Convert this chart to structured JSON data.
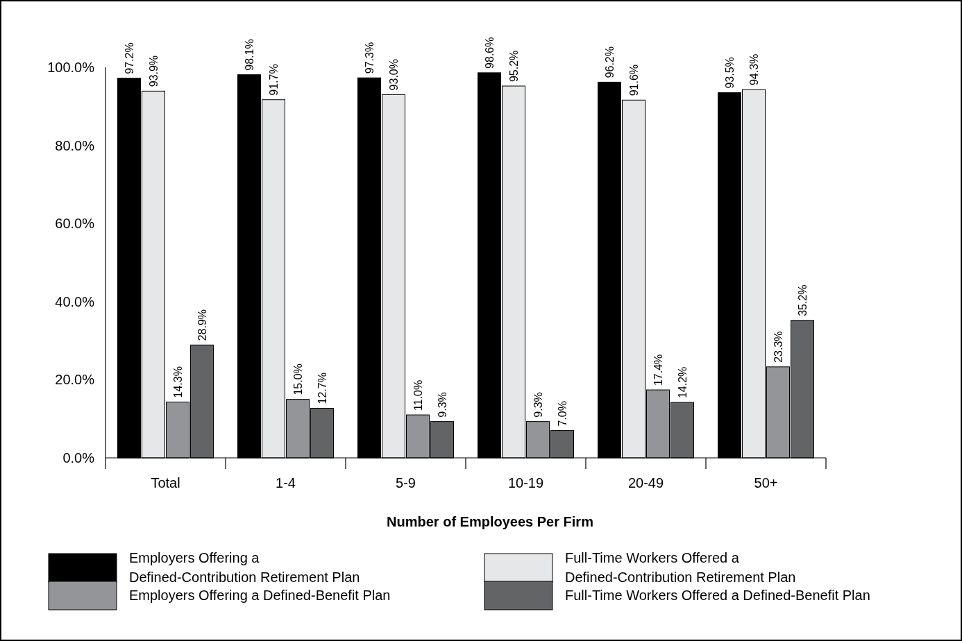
{
  "chart_data": {
    "type": "bar",
    "xlabel": "Number of Employees Per Firm",
    "categories": [
      "Total",
      "1-4",
      "5-9",
      "10-19",
      "20-49",
      "50+"
    ],
    "series": [
      {
        "name": "Employers Offering a\nDefined-Contribution Retirement Plan",
        "color": "#000000",
        "values": [
          97.2,
          98.1,
          97.3,
          98.6,
          96.2,
          93.5
        ],
        "value_labels": [
          "97.2%",
          "98.1%",
          "97.3%",
          "98.6%",
          "96.2%",
          "93.5%"
        ]
      },
      {
        "name": "Full-Time Workers Offered a\nDefined-Contribution Retirement Plan",
        "color": "#e6e7e8",
        "values": [
          93.9,
          91.7,
          93.0,
          95.2,
          91.6,
          94.3
        ],
        "value_labels": [
          "93.9%",
          "91.7%",
          "93.0%",
          "95.2%",
          "91.6%",
          "94.3%"
        ]
      },
      {
        "name": "Employers Offering a Defined-Benefit Plan",
        "color": "#939598",
        "values": [
          14.3,
          15.0,
          11.0,
          9.3,
          17.4,
          23.3
        ],
        "value_labels": [
          "14.3%",
          "15.0%",
          "11.0%",
          "9.3%",
          "17.4%",
          "23.3%"
        ]
      },
      {
        "name": "Full-Time Workers Offered a Defined-Benefit Plan",
        "color": "#636466",
        "values": [
          28.9,
          12.7,
          9.3,
          7.0,
          14.2,
          35.2
        ],
        "value_labels": [
          "28.9%",
          "12.7%",
          "9.3%",
          "7.0%",
          "14.2%",
          "35.2%"
        ]
      }
    ],
    "ylim": [
      0,
      100
    ],
    "yticks": [
      {
        "value": 0,
        "label": "0.0%"
      },
      {
        "value": 20,
        "label": "20.0%"
      },
      {
        "value": 40,
        "label": "40.0%"
      },
      {
        "value": 60,
        "label": "60.0%"
      },
      {
        "value": 80,
        "label": "80.0%"
      },
      {
        "value": 100,
        "label": "100.0%"
      }
    ],
    "grid": false,
    "legend": "bottom"
  }
}
